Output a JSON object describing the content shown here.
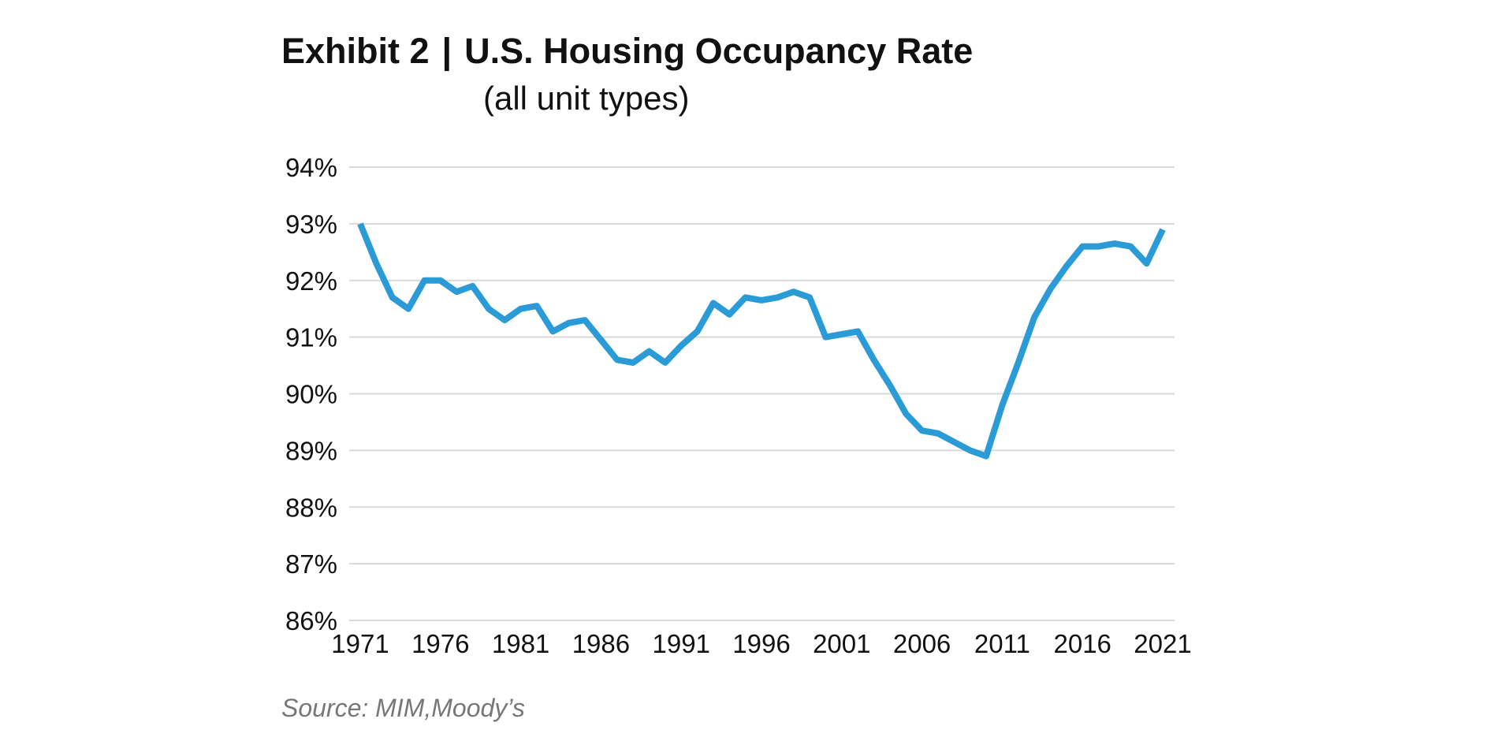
{
  "header": {
    "exhibit": "Exhibit 2",
    "separator": "|",
    "title": "U.S. Housing Occupancy Rate",
    "subtitle": "(all unit types)"
  },
  "source": "Source: MIM,Moody’s",
  "colors": {
    "line": "#2b9bd8",
    "grid": "#d9d9d9",
    "text": "#111111",
    "source": "#777777"
  },
  "chart_data": {
    "type": "line",
    "title": "U.S. Housing Occupancy Rate",
    "subtitle": "(all unit types)",
    "xlabel": "",
    "ylabel": "",
    "xlim": [
      1971,
      2021
    ],
    "ylim": [
      86,
      94
    ],
    "x_ticks": [
      1971,
      1976,
      1981,
      1986,
      1991,
      1996,
      2001,
      2006,
      2011,
      2016,
      2021
    ],
    "y_ticks": [
      86,
      87,
      88,
      89,
      90,
      91,
      92,
      93,
      94
    ],
    "y_tick_labels": [
      "86%",
      "87%",
      "88%",
      "89%",
      "90%",
      "91%",
      "92%",
      "93%",
      "94%"
    ],
    "grid": "horizontal",
    "legend": "none",
    "x": [
      1971,
      1972,
      1973,
      1974,
      1975,
      1976,
      1977,
      1978,
      1979,
      1980,
      1981,
      1982,
      1983,
      1984,
      1985,
      1986,
      1987,
      1988,
      1989,
      1990,
      1991,
      1992,
      1993,
      1994,
      1995,
      1996,
      1997,
      1998,
      1999,
      2000,
      2001,
      2002,
      2003,
      2004,
      2005,
      2006,
      2007,
      2008,
      2009,
      2010,
      2011,
      2012,
      2013,
      2014,
      2015,
      2016,
      2017,
      2018,
      2019,
      2020
    ],
    "y": [
      93.0,
      92.3,
      91.7,
      91.5,
      92.0,
      92.0,
      91.8,
      91.9,
      91.5,
      91.3,
      91.5,
      91.55,
      91.1,
      91.25,
      91.3,
      90.95,
      90.6,
      90.55,
      90.75,
      90.55,
      90.85,
      91.1,
      91.6,
      91.4,
      91.7,
      91.65,
      91.7,
      91.8,
      91.7,
      91.0,
      91.05,
      91.1,
      90.6,
      90.15,
      89.65,
      89.35,
      89.3,
      89.15,
      89.0,
      88.9,
      89.8,
      90.55,
      91.35,
      91.85,
      92.25,
      92.6,
      92.6,
      92.65,
      92.6,
      92.3
    ],
    "last_point": {
      "x": 2021,
      "y": 92.9
    }
  }
}
